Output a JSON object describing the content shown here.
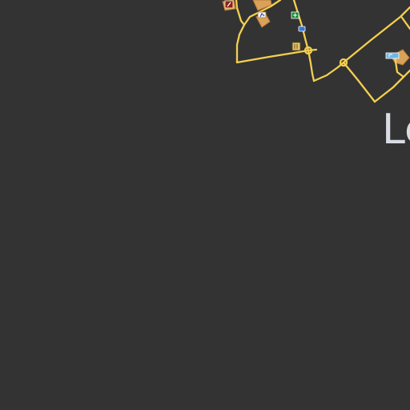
{
  "map": {
    "place_label": "Le",
    "colors": {
      "background": "#333333",
      "road": "#f4cf4f",
      "road_casing": "#c9a43a",
      "building": "#d9a15a",
      "building_outline": "#b77c36",
      "place_text": "#d9dde3"
    },
    "poi_icons": [
      "fire-station-icon",
      "accessible-icon",
      "pharmacy-icon",
      "bus-stop-icon",
      "restaurant-icon",
      "parking-icon"
    ]
  }
}
